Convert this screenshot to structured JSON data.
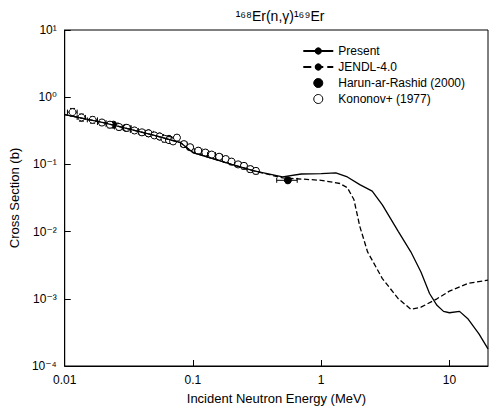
{
  "chart_data": {
    "type": "line",
    "title": "¹⁶⁸Er(n,γ)¹⁶⁹Er",
    "x_label": "Incident Neutron Energy (MeV)",
    "y_label": "Cross Section (b)",
    "log": true,
    "grid": false,
    "legend": "upper right",
    "xlim": [
      0.01,
      20
    ],
    "xticks": [
      0.01,
      0.1,
      1,
      10
    ],
    "ylim": [
      0.0001,
      10
    ],
    "yticks": [
      {
        "value": 0.0001,
        "label": "10⁻⁴"
      },
      {
        "value": 0.001,
        "label": "10⁻³"
      },
      {
        "value": 0.01,
        "label": "10⁻²"
      },
      {
        "value": 0.1,
        "label": "10⁻¹"
      },
      {
        "value": 1,
        "label": "10⁰"
      },
      {
        "value": 10,
        "label": "10¹"
      }
    ],
    "series": [
      {
        "name": "Present",
        "type": "line",
        "color": "#000000",
        "line_style": "solid",
        "x": [
          0.01,
          0.02,
          0.05,
          0.08,
          0.1,
          0.2,
          0.3,
          0.5,
          0.7,
          1,
          1.3,
          1.6,
          2,
          2.5,
          3,
          4,
          5,
          6,
          7,
          8,
          9,
          10,
          12,
          14,
          17,
          20
        ],
        "values": [
          0.55,
          0.42,
          0.27,
          0.21,
          0.15,
          0.1,
          0.08,
          0.065,
          0.072,
          0.073,
          0.075,
          0.065,
          0.05,
          0.04,
          0.025,
          0.01,
          0.005,
          0.0025,
          0.0012,
          0.0008,
          0.00065,
          0.00062,
          0.00065,
          0.0005,
          0.0003,
          0.00018
        ]
      },
      {
        "name": "JENDL-4.0",
        "type": "line",
        "color": "#000000",
        "line_style": "dashed",
        "x": [
          0.01,
          0.02,
          0.05,
          0.08,
          0.1,
          0.2,
          0.3,
          0.5,
          1,
          1.4,
          1.6,
          1.8,
          2,
          2.3,
          3,
          4,
          5,
          6,
          8,
          10,
          14,
          20
        ],
        "values": [
          0.55,
          0.42,
          0.27,
          0.21,
          0.15,
          0.1,
          0.08,
          0.063,
          0.058,
          0.052,
          0.045,
          0.03,
          0.012,
          0.005,
          0.002,
          0.001,
          0.0007,
          0.00075,
          0.001,
          0.0013,
          0.0017,
          0.0019
        ]
      },
      {
        "name": "Harun-ar-Rashid (2000)",
        "type": "scatter",
        "color": "#000000",
        "marker": "filled circle",
        "x": [
          0.024,
          0.03,
          0.045,
          0.055,
          0.065,
          0.55
        ],
        "values": [
          0.39,
          0.35,
          0.29,
          0.26,
          0.24,
          0.058
        ],
        "xerr": [
          0.002,
          0.003,
          0.004,
          0.004,
          0.005,
          0.1
        ],
        "yerr": [
          0.03,
          0.025,
          0.02,
          0.02,
          0.02,
          0.005
        ]
      },
      {
        "name": "Kononov+ (1977)",
        "type": "scatter",
        "color": "#000000",
        "marker": "open circle",
        "x": [
          0.0115,
          0.0135,
          0.0165,
          0.0195,
          0.0225,
          0.0265,
          0.0305,
          0.035,
          0.04,
          0.045,
          0.05,
          0.055,
          0.06,
          0.065,
          0.07,
          0.075,
          0.085,
          0.095,
          0.11,
          0.125,
          0.14,
          0.16,
          0.18,
          0.2,
          0.225,
          0.25,
          0.28,
          0.31
        ],
        "values": [
          0.6,
          0.5,
          0.46,
          0.42,
          0.39,
          0.36,
          0.35,
          0.32,
          0.3,
          0.29,
          0.27,
          0.26,
          0.24,
          0.23,
          0.22,
          0.25,
          0.2,
          0.18,
          0.16,
          0.15,
          0.14,
          0.13,
          0.12,
          0.11,
          0.1,
          0.095,
          0.085,
          0.08
        ],
        "xerr": [
          0.001,
          0.001,
          0.0015,
          0.0015,
          0.0015,
          0.002,
          0.002,
          0.0025,
          0.0025,
          0.0025,
          0.0025,
          0.0025,
          0.0025,
          0.0025,
          0.0025,
          0.0025,
          0.005,
          0.005,
          0.0075,
          0.0075,
          0.01,
          0.01,
          0.01,
          0.01,
          0.0125,
          0.0125,
          0.015,
          0.015
        ],
        "yerr": [
          0.08,
          0.06,
          0.05,
          0.04,
          0.04,
          0.035,
          0.035,
          0.03,
          0.03,
          0.03,
          0.025,
          0.025,
          0.025,
          0.02,
          0.02,
          0.025,
          0.02,
          0.018,
          0.016,
          0.015,
          0.014,
          0.013,
          0.012,
          0.011,
          0.01,
          0.01,
          0.009,
          0.008
        ]
      }
    ]
  }
}
